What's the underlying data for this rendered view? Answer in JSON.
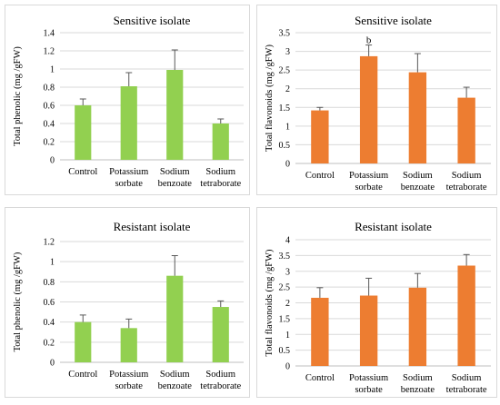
{
  "chart_data": [
    {
      "type": "bar",
      "title": "Sensitive isolate",
      "ylabel": "Total phenolic (mg /gFW)",
      "categories": [
        "Control",
        "Potassium sorbate",
        "Sodium benzoate",
        "Sodium tetraborate"
      ],
      "category_lines": [
        [
          "Control"
        ],
        [
          "Potassium",
          "sorbate"
        ],
        [
          "Sodium",
          "benzoate"
        ],
        [
          "Sodium",
          "tetraborate"
        ]
      ],
      "values": [
        0.6,
        0.81,
        0.99,
        0.4
      ],
      "errors": [
        0.07,
        0.15,
        0.22,
        0.05
      ],
      "annotations": [
        "",
        "",
        "",
        ""
      ],
      "ylim": [
        0,
        1.4
      ],
      "yticks": [
        0,
        0.2,
        0.4,
        0.6,
        0.8,
        1,
        1.2,
        1.4
      ],
      "ytick_labels": [
        "0",
        "0.2",
        "0.4",
        "0.6",
        "0.8",
        "1",
        "1.2",
        "1.4"
      ],
      "grid": true,
      "color": "#92d050"
    },
    {
      "type": "bar",
      "title": "Sensitive isolate",
      "ylabel": "Total flavonoids (mg /gFW)",
      "categories": [
        "Control",
        "Potassium sorbate",
        "Sodium benzoate",
        "Sodium tetraborate"
      ],
      "category_lines": [
        [
          "Control"
        ],
        [
          "Potassium",
          "sorbate"
        ],
        [
          "Sodium",
          "benzoate"
        ],
        [
          "Sodium",
          "tetraborate"
        ]
      ],
      "values": [
        1.42,
        2.87,
        2.44,
        1.76
      ],
      "errors": [
        0.08,
        0.3,
        0.5,
        0.28
      ],
      "annotations": [
        "",
        "b",
        "",
        ""
      ],
      "ylim": [
        0,
        3.5
      ],
      "yticks": [
        0,
        0.5,
        1,
        1.5,
        2,
        2.5,
        3,
        3.5
      ],
      "ytick_labels": [
        "0",
        "0.5",
        "1",
        "1.5",
        "2",
        "2.5",
        "3",
        "3.5"
      ],
      "grid": true,
      "color": "#ed7d31"
    },
    {
      "type": "bar",
      "title": "Resistant isolate",
      "ylabel": "Total phenolic (mg /gFW)",
      "categories": [
        "Control",
        "Potassium sorbate",
        "Sodium benzoate",
        "Sodium tetraborate"
      ],
      "category_lines": [
        [
          "Control"
        ],
        [
          "Potassium",
          "sorbate"
        ],
        [
          "Sodium",
          "benzoate"
        ],
        [
          "Sodium",
          "tetraborate"
        ]
      ],
      "values": [
        0.4,
        0.34,
        0.86,
        0.55
      ],
      "errors": [
        0.07,
        0.09,
        0.2,
        0.06
      ],
      "annotations": [
        "",
        "",
        "",
        ""
      ],
      "ylim": [
        0,
        1.2
      ],
      "yticks": [
        0,
        0.2,
        0.4,
        0.6,
        0.8,
        1,
        1.2
      ],
      "ytick_labels": [
        "0",
        "0.2",
        "0.4",
        "0.6",
        "0.8",
        "1",
        "1.2"
      ],
      "grid": true,
      "color": "#92d050"
    },
    {
      "type": "bar",
      "title": "Resistant isolate",
      "ylabel": "Total flavonoids (mg /gFW)",
      "categories": [
        "Control",
        "Potassium sorbate",
        "Sodium benzoate",
        "Sodium tetraborate"
      ],
      "category_lines": [
        [
          "Control"
        ],
        [
          "Potassium",
          "sorbate"
        ],
        [
          "Sodium",
          "benzoate"
        ],
        [
          "Sodium",
          "tetraborate"
        ]
      ],
      "values": [
        2.16,
        2.23,
        2.48,
        3.18
      ],
      "errors": [
        0.32,
        0.55,
        0.45,
        0.35
      ],
      "annotations": [
        "",
        "",
        "",
        ""
      ],
      "ylim": [
        0,
        4
      ],
      "yticks": [
        0,
        0.5,
        1,
        1.5,
        2,
        2.5,
        3,
        3.5,
        4
      ],
      "ytick_labels": [
        "0",
        "0.5",
        "1",
        "1.5",
        "2",
        "2.5",
        "3",
        "3.5",
        "4"
      ],
      "grid": true,
      "color": "#ed7d31"
    }
  ]
}
